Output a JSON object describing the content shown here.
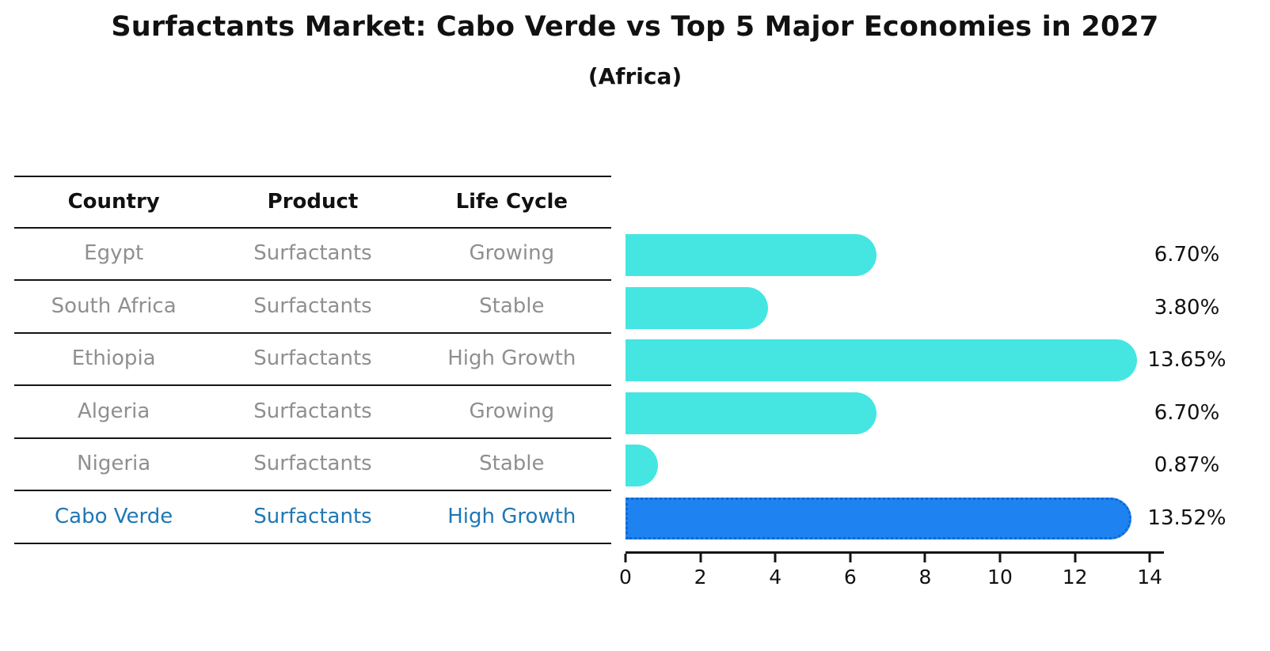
{
  "title": "Surfactants Market: Cabo Verde vs Top 5 Major Economies in 2027",
  "subtitle": "(Africa)",
  "table": {
    "headers": [
      "Country",
      "Product",
      "Life Cycle"
    ],
    "rows": [
      {
        "country": "Egypt",
        "product": "Surfactants",
        "life_cycle": "Growing",
        "highlighted": false
      },
      {
        "country": "South Africa",
        "product": "Surfactants",
        "life_cycle": "Stable",
        "highlighted": false
      },
      {
        "country": "Ethiopia",
        "product": "Surfactants",
        "life_cycle": "High Growth",
        "highlighted": false
      },
      {
        "country": "Algeria",
        "product": "Surfactants",
        "life_cycle": "Growing",
        "highlighted": false
      },
      {
        "country": "Nigeria",
        "product": "Surfactants",
        "life_cycle": "Stable",
        "highlighted": false
      },
      {
        "country": "Cabo Verde",
        "product": "Surfactants",
        "life_cycle": "High Growth",
        "highlighted": true
      }
    ]
  },
  "chart_data": {
    "type": "bar",
    "orientation": "horizontal",
    "title": "Surfactants Market: Cabo Verde vs Top 5 Major Economies in 2027 (Africa)",
    "categories": [
      "Egypt",
      "South Africa",
      "Ethiopia",
      "Algeria",
      "Nigeria",
      "Cabo Verde"
    ],
    "values": [
      6.7,
      3.8,
      13.65,
      6.7,
      0.87,
      13.52
    ],
    "value_labels": [
      "6.70%",
      "3.80%",
      "13.65%",
      "6.70%",
      "0.87%",
      "13.52%"
    ],
    "xlabel": "",
    "ylabel": "",
    "xlim": [
      0,
      14.4
    ],
    "xticks": [
      0,
      2,
      4,
      6,
      8,
      10,
      12,
      14
    ],
    "grid": false,
    "legend": false,
    "highlight_index": 5
  },
  "colors": {
    "bar_fill": "#45E6E1",
    "highlight_bar_fill": "#1E82F0",
    "highlight_bar_edge": "#0E68D2",
    "highlight_text": "#1F77B4",
    "row_text": "#8F8F8F",
    "header_text": "#111111",
    "axis": "#141414"
  }
}
